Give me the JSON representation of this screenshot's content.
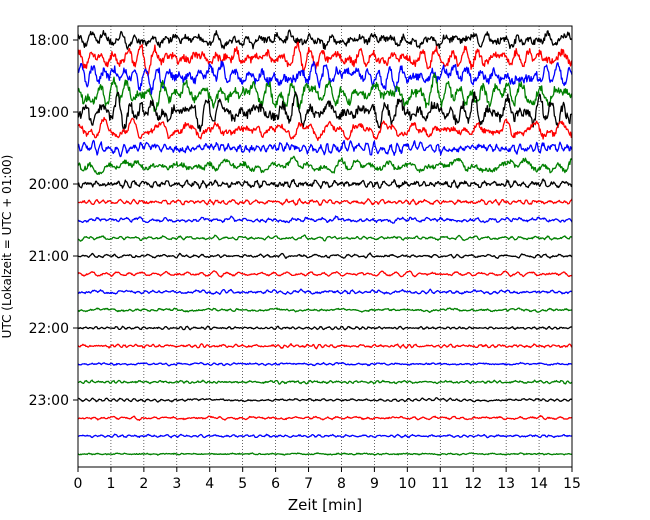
{
  "chart_data": {
    "type": "line",
    "title": "",
    "xlabel": "Zeit  [min]",
    "ylabel": "UTC (Lokalzeit = UTC + 01:00)",
    "xlim": [
      0,
      15
    ],
    "x_ticks": [
      "0",
      "1",
      "2",
      "3",
      "4",
      "5",
      "6",
      "7",
      "8",
      "9",
      "10",
      "11",
      "12",
      "13",
      "14",
      "15"
    ],
    "y_ticks": [
      "18:00",
      "19:00",
      "20:00",
      "21:00",
      "22:00",
      "23:00"
    ],
    "grid_x": true,
    "grid_y": false,
    "trace_colors": [
      "#000000",
      "#ff0000",
      "#0000ff",
      "#008000"
    ],
    "trace_interval_minutes": 15,
    "traces": [
      {
        "start": "18:00",
        "amplitude": 12
      },
      {
        "start": "18:15",
        "amplitude": 14
      },
      {
        "start": "18:30",
        "amplitude": 16
      },
      {
        "start": "18:45",
        "amplitude": 17
      },
      {
        "start": "19:00",
        "amplitude": 18
      },
      {
        "start": "19:15",
        "amplitude": 10
      },
      {
        "start": "19:30",
        "amplitude": 8
      },
      {
        "start": "19:45",
        "amplitude": 9
      },
      {
        "start": "20:00",
        "amplitude": 6
      },
      {
        "start": "20:15",
        "amplitude": 3.5
      },
      {
        "start": "20:30",
        "amplitude": 3.5
      },
      {
        "start": "20:45",
        "amplitude": 2.5
      },
      {
        "start": "21:00",
        "amplitude": 2.2
      },
      {
        "start": "21:15",
        "amplitude": 2.5
      },
      {
        "start": "21:30",
        "amplitude": 2.6
      },
      {
        "start": "21:45",
        "amplitude": 2.3
      },
      {
        "start": "22:00",
        "amplitude": 2.0
      },
      {
        "start": "22:15",
        "amplitude": 2.4
      },
      {
        "start": "22:30",
        "amplitude": 2.0
      },
      {
        "start": "22:45",
        "amplitude": 2.3
      },
      {
        "start": "23:00",
        "amplitude": 1.8
      },
      {
        "start": "23:15",
        "amplitude": 2.2
      },
      {
        "start": "23:30",
        "amplitude": 2.0
      },
      {
        "start": "23:45",
        "amplitude": 1.8
      }
    ]
  }
}
